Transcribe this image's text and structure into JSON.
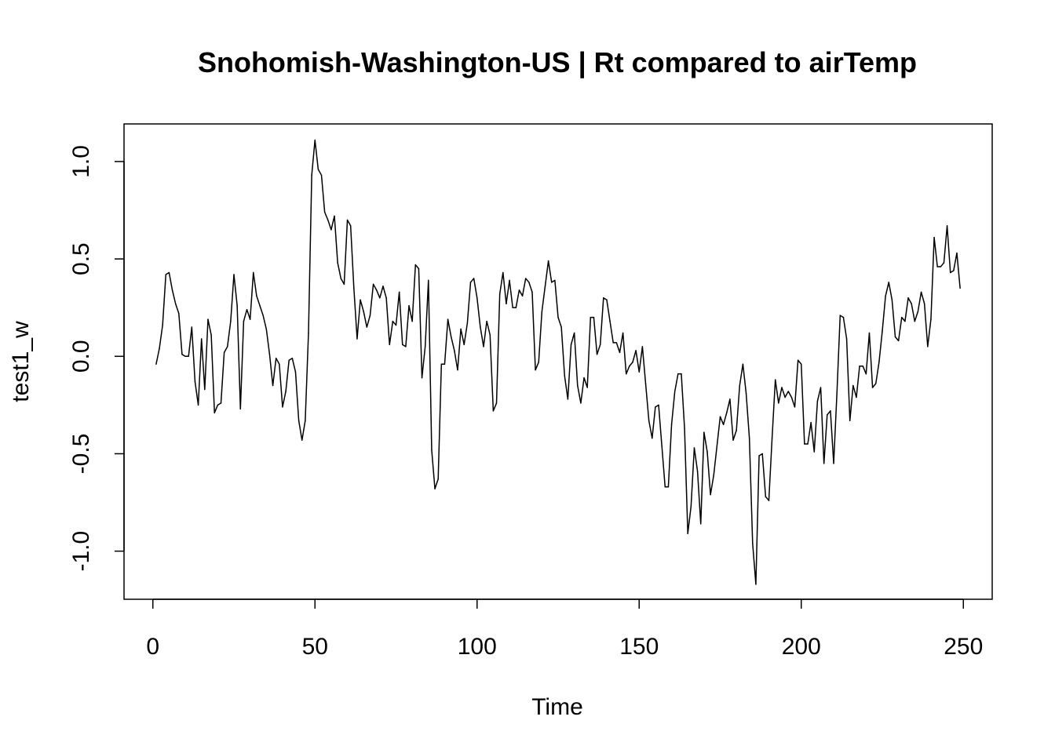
{
  "chart_data": {
    "type": "line",
    "title": "Snohomish-Washington-US | Rt compared to airTemp",
    "xlabel": "Time",
    "ylabel": "test1_w",
    "xlim": [
      -8.9,
      258.9
    ],
    "ylim": [
      -1.247,
      1.193
    ],
    "x_ticks": [
      0,
      50,
      100,
      150,
      200,
      250
    ],
    "x_tick_labels": [
      "0",
      "50",
      "100",
      "150",
      "200",
      "250"
    ],
    "y_ticks": [
      -1.0,
      -0.5,
      0.0,
      0.5,
      1.0
    ],
    "y_tick_labels": [
      "-1.0",
      "-0.5",
      "0.0",
      "0.5",
      "1.0"
    ],
    "grid": false,
    "legend": "none",
    "line_color": "#000000",
    "x_start": 1,
    "series": [
      {
        "values": [
          -0.04,
          0.04,
          0.16,
          0.42,
          0.43,
          0.34,
          0.27,
          0.22,
          0.01,
          0.0,
          0.0,
          0.15,
          -0.13,
          -0.25,
          0.09,
          -0.17,
          0.19,
          0.11,
          -0.29,
          -0.25,
          -0.24,
          0.02,
          0.05,
          0.18,
          0.42,
          0.26,
          -0.27,
          0.18,
          0.24,
          0.19,
          0.43,
          0.31,
          0.26,
          0.21,
          0.14,
          0.01,
          -0.15,
          -0.01,
          -0.04,
          -0.26,
          -0.18,
          -0.02,
          -0.01,
          -0.08,
          -0.33,
          -0.43,
          -0.33,
          0.12,
          0.93,
          1.11,
          0.96,
          0.93,
          0.74,
          0.7,
          0.65,
          0.72,
          0.48,
          0.4,
          0.37,
          0.7,
          0.67,
          0.35,
          0.09,
          0.29,
          0.23,
          0.15,
          0.21,
          0.37,
          0.34,
          0.3,
          0.36,
          0.3,
          0.06,
          0.18,
          0.16,
          0.33,
          0.06,
          0.05,
          0.26,
          0.18,
          0.47,
          0.45,
          -0.11,
          0.05,
          0.39,
          -0.48,
          -0.68,
          -0.63,
          -0.04,
          -0.04,
          0.19,
          0.1,
          0.03,
          -0.07,
          0.14,
          0.06,
          0.17,
          0.38,
          0.4,
          0.3,
          0.15,
          0.05,
          0.18,
          0.11,
          -0.28,
          -0.24,
          0.32,
          0.43,
          0.27,
          0.39,
          0.25,
          0.25,
          0.34,
          0.31,
          0.4,
          0.38,
          0.33,
          -0.07,
          -0.03,
          0.23,
          0.36,
          0.49,
          0.38,
          0.39,
          0.2,
          0.15,
          -0.1,
          -0.22,
          0.06,
          0.12,
          -0.15,
          -0.24,
          -0.11,
          -0.16,
          0.2,
          0.2,
          0.01,
          0.06,
          0.3,
          0.29,
          0.18,
          0.07,
          0.07,
          0.02,
          0.12,
          -0.09,
          -0.05,
          -0.03,
          0.03,
          -0.08,
          0.05,
          -0.14,
          -0.33,
          -0.42,
          -0.26,
          -0.25,
          -0.46,
          -0.67,
          -0.67,
          -0.35,
          -0.18,
          -0.09,
          -0.09,
          -0.37,
          -0.91,
          -0.77,
          -0.47,
          -0.59,
          -0.86,
          -0.39,
          -0.49,
          -0.71,
          -0.61,
          -0.46,
          -0.31,
          -0.35,
          -0.29,
          -0.22,
          -0.43,
          -0.38,
          -0.15,
          -0.04,
          -0.19,
          -0.42,
          -0.96,
          -1.17,
          -0.51,
          -0.5,
          -0.72,
          -0.74,
          -0.42,
          -0.12,
          -0.24,
          -0.16,
          -0.21,
          -0.18,
          -0.21,
          -0.26,
          -0.02,
          -0.04,
          -0.45,
          -0.45,
          -0.34,
          -0.49,
          -0.23,
          -0.16,
          -0.55,
          -0.3,
          -0.28,
          -0.55,
          -0.19,
          0.21,
          0.2,
          0.09,
          -0.33,
          -0.15,
          -0.21,
          -0.05,
          -0.05,
          -0.09,
          0.12,
          -0.16,
          -0.14,
          -0.03,
          0.13,
          0.31,
          0.38,
          0.29,
          0.1,
          0.08,
          0.2,
          0.18,
          0.3,
          0.27,
          0.18,
          0.23,
          0.33,
          0.27,
          0.05,
          0.19,
          0.61,
          0.46,
          0.46,
          0.48,
          0.67,
          0.43,
          0.44,
          0.53,
          0.35
        ]
      }
    ]
  }
}
